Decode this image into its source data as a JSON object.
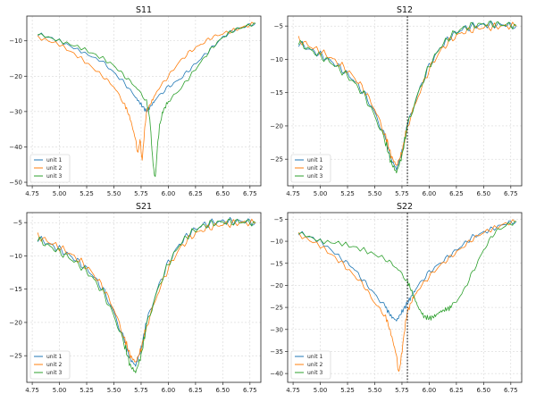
{
  "colors": {
    "unit1": "#1f77b4",
    "unit2": "#ff7f0e",
    "unit3": "#2ca02c",
    "grid": "#cfcfcf"
  },
  "chart_data": [
    {
      "type": "line",
      "title": "S11",
      "xlim": [
        4.7,
        6.85
      ],
      "ylim": [
        -51,
        -3
      ],
      "xticks": [
        4.75,
        5.0,
        5.25,
        5.5,
        5.75,
        6.0,
        6.25,
        6.5,
        6.75
      ],
      "yticks": [
        -10,
        -20,
        -30,
        -40,
        -50
      ],
      "grid": true,
      "legend": "lower-left",
      "vline": null,
      "series": [
        {
          "name": "unit 1",
          "color": "#1f77b4",
          "x": [
            4.8,
            5.0,
            5.2,
            5.4,
            5.5,
            5.6,
            5.7,
            5.75,
            5.8,
            5.85,
            5.9,
            6.0,
            6.1,
            6.2,
            6.3,
            6.4,
            6.5,
            6.6,
            6.7,
            6.8
          ],
          "y": [
            -8,
            -10,
            -13,
            -16,
            -19,
            -22,
            -26,
            -28,
            -30,
            -28,
            -26,
            -23,
            -21,
            -18,
            -15,
            -12,
            -9,
            -7,
            -6,
            -5
          ]
        },
        {
          "name": "unit 2",
          "color": "#ff7f0e",
          "x": [
            4.8,
            5.0,
            5.2,
            5.4,
            5.5,
            5.6,
            5.65,
            5.7,
            5.72,
            5.74,
            5.76,
            5.78,
            5.8,
            5.85,
            5.9,
            6.0,
            6.1,
            6.2,
            6.3,
            6.4,
            6.5,
            6.6,
            6.7,
            6.8
          ],
          "y": [
            -9,
            -11,
            -15,
            -20,
            -23,
            -28,
            -32,
            -38,
            -42,
            -38,
            -44,
            -36,
            -30,
            -27,
            -24,
            -20,
            -16,
            -13,
            -11,
            -9,
            -8,
            -7,
            -6,
            -5
          ]
        },
        {
          "name": "unit 3",
          "color": "#2ca02c",
          "x": [
            4.8,
            5.0,
            5.2,
            5.4,
            5.5,
            5.6,
            5.7,
            5.8,
            5.83,
            5.86,
            5.88,
            5.9,
            5.92,
            5.95,
            6.0,
            6.1,
            6.2,
            6.3,
            6.4,
            6.5,
            6.6,
            6.7,
            6.8
          ],
          "y": [
            -8,
            -10,
            -12,
            -15,
            -17,
            -20,
            -23,
            -27,
            -32,
            -45,
            -49,
            -40,
            -34,
            -30,
            -27,
            -24,
            -20,
            -16,
            -12,
            -9,
            -7,
            -6,
            -5
          ]
        }
      ]
    },
    {
      "type": "line",
      "title": "S12",
      "xlim": [
        4.7,
        6.85
      ],
      "ylim": [
        -29,
        -3.5
      ],
      "xticks": [
        4.75,
        5.0,
        5.25,
        5.5,
        5.75,
        6.0,
        6.25,
        6.5,
        6.75
      ],
      "yticks": [
        -5,
        -10,
        -15,
        -20,
        -25
      ],
      "grid": true,
      "legend": "lower-left",
      "vline": 5.8,
      "series": [
        {
          "name": "unit 1",
          "color": "#1f77b4",
          "x": [
            4.8,
            4.9,
            5.0,
            5.1,
            5.2,
            5.3,
            5.4,
            5.5,
            5.6,
            5.65,
            5.7,
            5.75,
            5.8,
            5.9,
            6.0,
            6.1,
            6.2,
            6.3,
            6.4,
            6.5,
            6.6,
            6.7,
            6.8
          ],
          "y": [
            -7.5,
            -8.5,
            -9.3,
            -10.3,
            -11.5,
            -13,
            -15,
            -18,
            -22,
            -25,
            -26.5,
            -24,
            -20,
            -15,
            -11,
            -8.3,
            -6.5,
            -5.5,
            -5,
            -4.8,
            -4.8,
            -4.8,
            -5
          ]
        },
        {
          "name": "unit 2",
          "color": "#ff7f0e",
          "x": [
            4.8,
            4.9,
            5.0,
            5.1,
            5.2,
            5.3,
            5.4,
            5.5,
            5.6,
            5.65,
            5.7,
            5.75,
            5.8,
            5.9,
            6.0,
            6.1,
            6.2,
            6.3,
            6.4,
            6.5,
            6.6,
            6.7,
            6.8
          ],
          "y": [
            -7,
            -8,
            -8.8,
            -9.8,
            -11,
            -12.5,
            -14.5,
            -17.5,
            -21.5,
            -24.5,
            -26,
            -24,
            -20,
            -15.5,
            -11.5,
            -8.8,
            -7,
            -6,
            -5.5,
            -5.2,
            -5.1,
            -5,
            -5
          ]
        },
        {
          "name": "unit 3",
          "color": "#2ca02c",
          "x": [
            4.8,
            4.9,
            5.0,
            5.1,
            5.2,
            5.3,
            5.4,
            5.5,
            5.6,
            5.65,
            5.7,
            5.75,
            5.8,
            5.9,
            6.0,
            6.1,
            6.2,
            6.3,
            6.4,
            6.5,
            6.6,
            6.7,
            6.8
          ],
          "y": [
            -7.5,
            -8.5,
            -9.5,
            -10.5,
            -11.8,
            -13.3,
            -15.3,
            -18.5,
            -22.5,
            -25.5,
            -27,
            -24.5,
            -20,
            -15,
            -11,
            -8.2,
            -6.4,
            -5.4,
            -4.9,
            -4.7,
            -4.7,
            -4.8,
            -4.9
          ]
        }
      ]
    },
    {
      "type": "line",
      "title": "S21",
      "xlim": [
        4.7,
        6.85
      ],
      "ylim": [
        -29,
        -3.5
      ],
      "xticks": [
        4.75,
        5.0,
        5.25,
        5.5,
        5.75,
        6.0,
        6.25,
        6.5,
        6.75
      ],
      "yticks": [
        -5,
        -10,
        -15,
        -20,
        -25
      ],
      "grid": true,
      "legend": "lower-left",
      "vline": null,
      "series": [
        {
          "name": "unit 1",
          "color": "#1f77b4",
          "x": [
            4.8,
            4.9,
            5.0,
            5.1,
            5.2,
            5.3,
            5.4,
            5.5,
            5.6,
            5.65,
            5.7,
            5.75,
            5.8,
            5.9,
            6.0,
            6.1,
            6.2,
            6.3,
            6.4,
            6.5,
            6.6,
            6.7,
            6.8
          ],
          "y": [
            -7.3,
            -8.2,
            -9,
            -10,
            -11.2,
            -12.8,
            -15,
            -18.5,
            -23,
            -25.5,
            -26.5,
            -24,
            -20,
            -15,
            -11,
            -8.3,
            -6.5,
            -5.5,
            -5,
            -4.8,
            -4.8,
            -4.8,
            -5
          ]
        },
        {
          "name": "unit 2",
          "color": "#ff7f0e",
          "x": [
            4.8,
            4.9,
            5.0,
            5.1,
            5.2,
            5.3,
            5.4,
            5.5,
            5.6,
            5.65,
            5.7,
            5.75,
            5.8,
            5.9,
            6.0,
            6.1,
            6.2,
            6.3,
            6.4,
            6.5,
            6.6,
            6.7,
            6.8
          ],
          "y": [
            -7,
            -7.9,
            -8.7,
            -9.7,
            -10.9,
            -12.5,
            -14.7,
            -18,
            -22.5,
            -25,
            -26,
            -24,
            -20.5,
            -15.8,
            -11.8,
            -9,
            -7.2,
            -6.2,
            -5.6,
            -5.3,
            -5.1,
            -5,
            -5.1
          ]
        },
        {
          "name": "unit 3",
          "color": "#2ca02c",
          "x": [
            4.8,
            4.9,
            5.0,
            5.1,
            5.2,
            5.3,
            5.4,
            5.5,
            5.6,
            5.65,
            5.7,
            5.75,
            5.8,
            5.9,
            6.0,
            6.1,
            6.2,
            6.3,
            6.4,
            6.5,
            6.6,
            6.7,
            6.8
          ],
          "y": [
            -7.5,
            -8.5,
            -9.4,
            -10.4,
            -11.6,
            -13.2,
            -15.5,
            -19,
            -23.5,
            -26.5,
            -27.5,
            -25,
            -20.5,
            -15.2,
            -11.2,
            -8.4,
            -6.6,
            -5.6,
            -5.1,
            -4.9,
            -4.9,
            -4.9,
            -5
          ]
        }
      ]
    },
    {
      "type": "line",
      "title": "S22",
      "xlim": [
        4.7,
        6.85
      ],
      "ylim": [
        -42,
        -3.5
      ],
      "xticks": [
        4.75,
        5.0,
        5.25,
        5.5,
        5.75,
        6.0,
        6.25,
        6.5,
        6.75
      ],
      "yticks": [
        -5,
        -10,
        -15,
        -20,
        -25,
        -30,
        -35,
        -40
      ],
      "grid": true,
      "legend": "lower-left",
      "vline": 5.8,
      "series": [
        {
          "name": "unit 1",
          "color": "#1f77b4",
          "x": [
            4.8,
            5.0,
            5.2,
            5.3,
            5.4,
            5.5,
            5.6,
            5.65,
            5.7,
            5.75,
            5.8,
            5.85,
            5.9,
            6.0,
            6.1,
            6.2,
            6.3,
            6.4,
            6.5,
            6.6,
            6.7,
            6.8
          ],
          "y": [
            -8,
            -10,
            -14,
            -16,
            -19,
            -22,
            -25,
            -27,
            -28,
            -26,
            -24,
            -22,
            -20,
            -17,
            -15,
            -13,
            -11,
            -9,
            -8,
            -7,
            -6,
            -5.5
          ]
        },
        {
          "name": "unit 2",
          "color": "#ff7f0e",
          "x": [
            4.8,
            5.0,
            5.2,
            5.3,
            5.4,
            5.5,
            5.6,
            5.65,
            5.7,
            5.72,
            5.74,
            5.76,
            5.78,
            5.8,
            5.85,
            5.9,
            6.0,
            6.1,
            6.2,
            6.3,
            6.4,
            6.5,
            6.6,
            6.7,
            6.8
          ],
          "y": [
            -8.5,
            -11,
            -15,
            -17.5,
            -20,
            -24,
            -27,
            -31,
            -36,
            -40,
            -37,
            -33,
            -29,
            -26,
            -23,
            -21,
            -18,
            -15.5,
            -13.5,
            -11.5,
            -9.5,
            -8,
            -7,
            -6,
            -5.5
          ]
        },
        {
          "name": "unit 3",
          "color": "#2ca02c",
          "x": [
            4.8,
            5.0,
            5.2,
            5.4,
            5.6,
            5.7,
            5.8,
            5.85,
            5.9,
            5.95,
            6.0,
            6.05,
            6.1,
            6.15,
            6.2,
            6.3,
            6.4,
            6.5,
            6.6,
            6.7,
            6.8
          ],
          "y": [
            -8,
            -10,
            -10.5,
            -12,
            -14,
            -16,
            -19,
            -22,
            -25,
            -27,
            -27.5,
            -27,
            -26,
            -25.5,
            -25,
            -22,
            -17,
            -12,
            -8,
            -6.5,
            -5.5
          ]
        }
      ]
    }
  ]
}
